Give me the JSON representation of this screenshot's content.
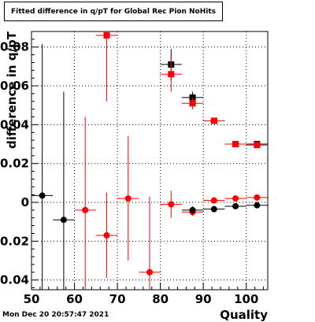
{
  "title": "Fitted difference in q/pT for Global Rec Pion NoHits",
  "timestamp": "Mon Dec 20 20:57:47 2021",
  "chart_data": {
    "type": "scatter",
    "xlabel": "Quality",
    "ylabel": "difference in q/pT",
    "xlim": [
      50,
      105
    ],
    "ylim": [
      -0.045,
      0.088
    ],
    "x_ticks": [
      "50",
      "60",
      "70",
      "80",
      "90",
      "100"
    ],
    "y_ticks": [
      "0.08",
      "0.06",
      "0.04",
      "0.02",
      "0",
      "-0.02",
      "-0.04"
    ],
    "grid": true,
    "series": [
      {
        "marker": "circle",
        "color": "#ff0000",
        "x_err": 2.5,
        "points": [
          {
            "x": 62.5,
            "y": -0.004,
            "err": 0.048
          },
          {
            "x": 67.5,
            "y": -0.017,
            "err": 0.022
          },
          {
            "x": 72.5,
            "y": 0.002,
            "err": 0.032
          },
          {
            "x": 77.5,
            "y": -0.036,
            "err": 0.039
          },
          {
            "x": 82.5,
            "y": -0.001,
            "err": 0.007
          },
          {
            "x": 87.5,
            "y": -0.005,
            "err": 0.002
          },
          {
            "x": 92.5,
            "y": 0.001,
            "err": 0.001
          },
          {
            "x": 97.5,
            "y": 0.002,
            "err": 0.001
          },
          {
            "x": 102.5,
            "y": 0.0025,
            "err": 0.001
          }
        ]
      },
      {
        "marker": "circle",
        "color": "#000000",
        "x_err": 2.5,
        "points": [
          {
            "x": 52.5,
            "y": 0.0035,
            "err": 0.078
          },
          {
            "x": 57.5,
            "y": -0.009,
            "err": 0.066
          },
          {
            "x": 87.5,
            "y": -0.004,
            "err": 0.002
          },
          {
            "x": 92.5,
            "y": -0.0035,
            "err": 0.001
          },
          {
            "x": 97.5,
            "y": -0.002,
            "err": 0.001
          },
          {
            "x": 102.5,
            "y": -0.0015,
            "err": 0.001
          }
        ]
      },
      {
        "marker": "square",
        "color": "#000000",
        "x_err": 2.5,
        "points": [
          {
            "x": 82.5,
            "y": 0.071,
            "err": 0.008
          },
          {
            "x": 87.5,
            "y": 0.054,
            "err": 0.003
          },
          {
            "x": 92.5,
            "y": 0.042,
            "err": 0.001
          },
          {
            "x": 97.5,
            "y": 0.03,
            "err": 0.001
          },
          {
            "x": 102.5,
            "y": 0.03,
            "err": 0.001
          }
        ]
      },
      {
        "marker": "square",
        "color": "#ff0000",
        "x_err": 2.5,
        "points": [
          {
            "x": 67.5,
            "y": 0.086,
            "err": 0.034
          },
          {
            "x": 82.5,
            "y": 0.066,
            "err": 0.009
          },
          {
            "x": 87.5,
            "y": 0.051,
            "err": 0.003
          },
          {
            "x": 92.5,
            "y": 0.042,
            "err": 0.001
          },
          {
            "x": 97.5,
            "y": 0.03,
            "err": 0.001
          },
          {
            "x": 102.5,
            "y": 0.0295,
            "err": 0.001
          }
        ]
      }
    ]
  }
}
